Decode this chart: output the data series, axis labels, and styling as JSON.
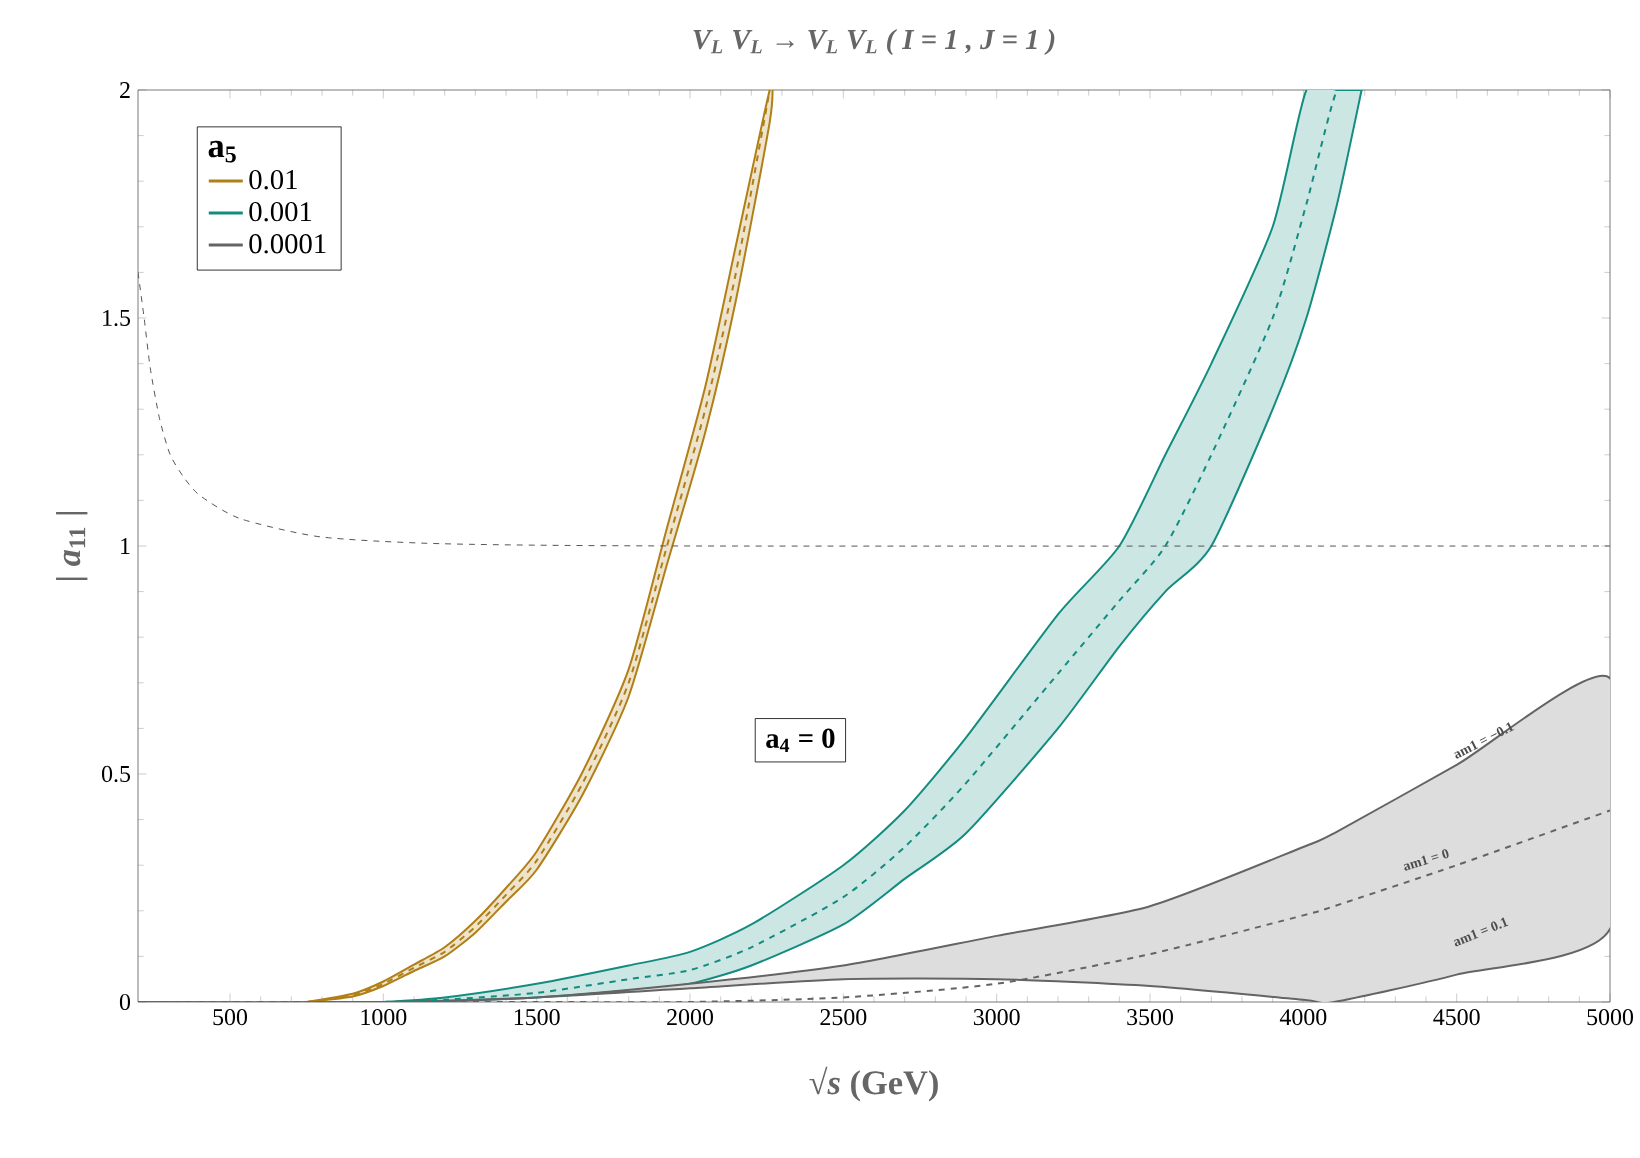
{
  "chart_data": {
    "type": "line",
    "title": "V$_{L}$ V$_{L}$ → V$_{L}$ V$_{L}$   ( I = 1 , J = 1 )",
    "xlabel": "√*s*  (GeV)",
    "ylabel": "| *a*$_{11}$ |",
    "legend_title": "a$_{5}$",
    "xlim": [
      200,
      5000
    ],
    "xticks": [
      500,
      1000,
      1500,
      2000,
      2500,
      3000,
      3500,
      4000,
      4500,
      5000
    ],
    "ylim": [
      0,
      2
    ],
    "yticks": [
      0,
      0.5,
      1,
      1.5,
      2
    ],
    "legend": "top left",
    "marker": "none",
    "annotations": [
      "a$_{4}$ = 0",
      "am1 = −0.1",
      "am1 = 0",
      "am1 = 0.1"
    ],
    "series": [
      {
        "color": "#555555",
        "line_style": "dashed",
        "x": [
          200,
          220,
          240,
          270,
          305,
          350,
          403,
          533,
          795,
          1190,
          2000,
          5000
        ],
        "values": [
          1.6,
          1.5,
          1.39,
          1.28,
          1.2,
          1.15,
          1.11,
          1.06,
          1.02,
          1.005,
          1.0,
          1.0
        ]
      },
      {
        "name": "0.01",
        "color": "#b07f16",
        "line_style": "dashed",
        "x": [
          750,
          900,
          1000,
          1100,
          1200,
          1300,
          1400,
          1500,
          1650,
          1800,
          1925,
          2050,
          2150,
          2260
        ],
        "values": [
          0,
          0.015,
          0.04,
          0.075,
          0.11,
          0.165,
          0.235,
          0.31,
          0.48,
          0.7,
          1.0,
          1.3,
          1.6,
          2.0
        ],
        "lower": [
          0,
          0.012,
          0.035,
          0.068,
          0.1,
          0.152,
          0.22,
          0.29,
          0.455,
          0.67,
          0.96,
          1.25,
          1.54,
          1.93
        ],
        "upper": [
          0,
          0.018,
          0.045,
          0.082,
          0.12,
          0.178,
          0.25,
          0.33,
          0.505,
          0.73,
          1.04,
          1.35,
          1.66,
          2.0
        ]
      },
      {
        "name": "0.001",
        "color": "#138c80",
        "line_style": "dashed",
        "x": [
          1000,
          1200,
          1500,
          1800,
          2000,
          2200,
          2500,
          2700,
          2900,
          3200,
          3400,
          3550,
          3700,
          3900,
          4010,
          4110,
          4190
        ],
        "values": [
          0,
          0.005,
          0.02,
          0.05,
          0.07,
          0.12,
          0.23,
          0.34,
          0.48,
          0.72,
          0.88,
          1.0,
          1.2,
          1.5,
          1.75,
          2.0,
          2.0
        ],
        "lower": [
          0,
          0.002,
          0.01,
          0.025,
          0.04,
          0.08,
          0.17,
          0.27,
          0.37,
          0.6,
          0.78,
          0.9,
          1.0,
          1.3,
          1.5,
          1.75,
          2.0
        ],
        "upper": [
          0,
          0.01,
          0.04,
          0.08,
          0.11,
          0.17,
          0.3,
          0.42,
          0.58,
          0.85,
          1.0,
          1.2,
          1.4,
          1.7,
          2.0,
          2.0,
          2.0
        ]
      },
      {
        "name": "0.0001",
        "color": "#646464",
        "line_style": "dashed",
        "x": [
          200,
          1000,
          1500,
          2000,
          2500,
          3000,
          3500,
          4000,
          4100,
          4500,
          5000
        ],
        "values": [
          0,
          0,
          0,
          0,
          0.01,
          0.04,
          0.105,
          0.19,
          0.21,
          0.3,
          0.42
        ],
        "lower": [
          0,
          0,
          0.01,
          0.03,
          0.05,
          0.05,
          0.035,
          0.005,
          0,
          0.06,
          0.16
        ],
        "upper": [
          0,
          0,
          0.01,
          0.04,
          0.08,
          0.145,
          0.21,
          0.34,
          0.37,
          0.52,
          0.71
        ]
      }
    ]
  }
}
